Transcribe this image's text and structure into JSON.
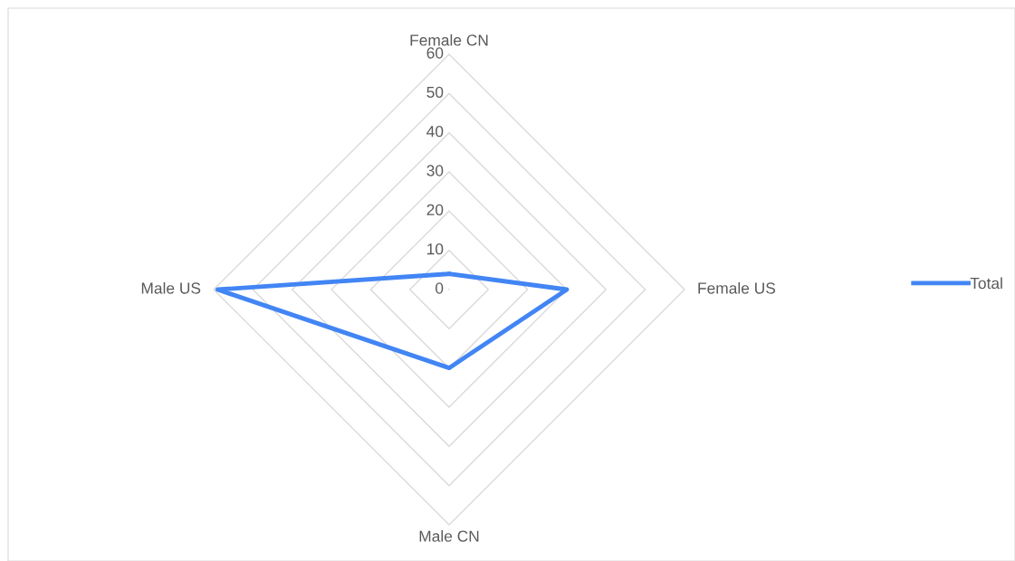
{
  "chart_data": {
    "type": "radar",
    "categories": [
      "Female CN",
      "Female US",
      "Male CN",
      "Male US"
    ],
    "series": [
      {
        "name": "Total",
        "color": "#4285f4",
        "values": [
          4,
          30,
          20,
          59
        ]
      }
    ],
    "ylim": [
      0,
      60
    ],
    "yticks": [
      0,
      10,
      20,
      30,
      40,
      50,
      60
    ],
    "grid": true,
    "legend": "right",
    "marker": "none",
    "line_style": "solid"
  }
}
